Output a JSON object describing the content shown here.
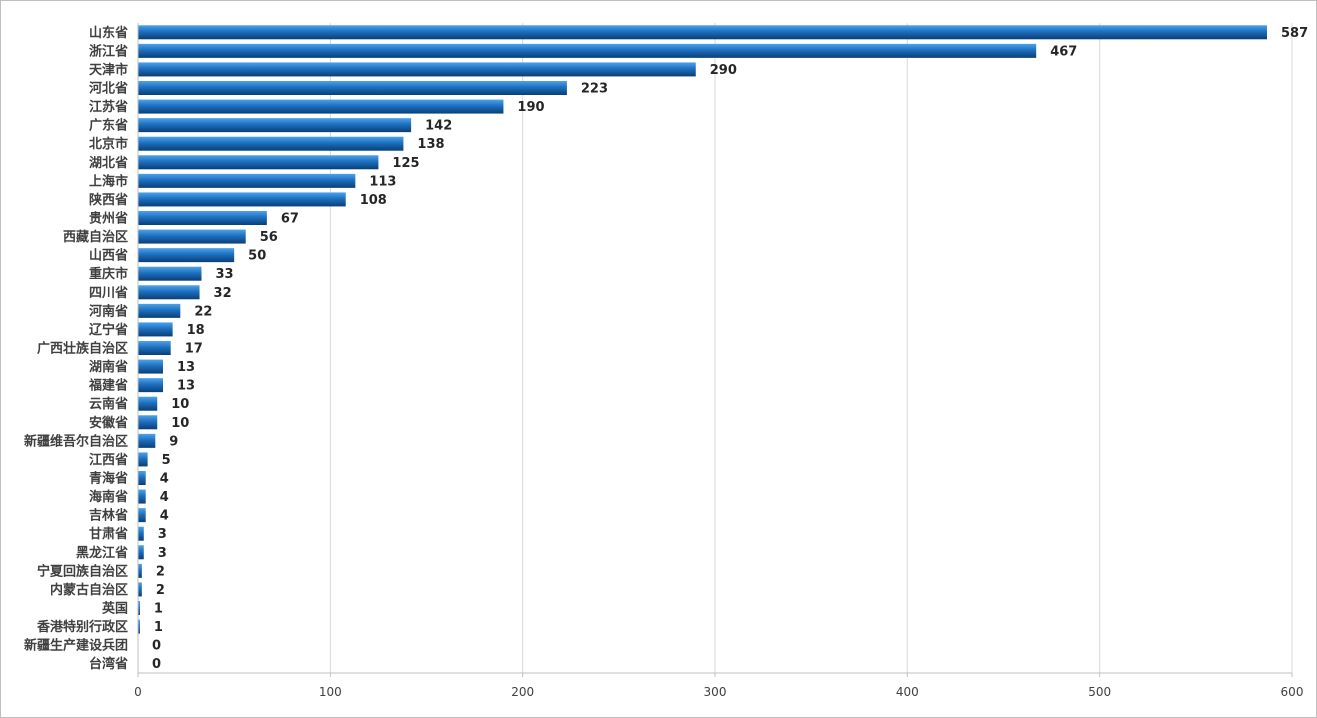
{
  "chart_data": {
    "type": "bar",
    "orientation": "horizontal",
    "categories": [
      "山东省",
      "浙江省",
      "天津市",
      "河北省",
      "江苏省",
      "广东省",
      "北京市",
      "湖北省",
      "上海市",
      "陕西省",
      "贵州省",
      "西藏自治区",
      "山西省",
      "重庆市",
      "四川省",
      "河南省",
      "辽宁省",
      "广西壮族自治区",
      "湖南省",
      "福建省",
      "云南省",
      "安徽省",
      "新疆维吾尔自治区",
      "江西省",
      "青海省",
      "海南省",
      "吉林省",
      "甘肃省",
      "黑龙江省",
      "宁夏回族自治区",
      "内蒙古自治区",
      "英国",
      "香港特别行政区",
      "新疆生产建设兵团",
      "台湾省"
    ],
    "values": [
      587,
      467,
      290,
      223,
      190,
      142,
      138,
      125,
      113,
      108,
      67,
      56,
      50,
      33,
      32,
      22,
      18,
      17,
      13,
      13,
      10,
      10,
      9,
      5,
      4,
      4,
      4,
      3,
      3,
      2,
      2,
      1,
      1,
      0,
      0
    ],
    "xlim": [
      0,
      600
    ],
    "xticks": [
      0,
      100,
      200,
      300,
      400,
      500,
      600
    ],
    "grid": "vertical",
    "legend": "none",
    "colors": {
      "bar_light": "#3a8fd8",
      "bar_dark": "#0b4e8c",
      "grid": "#d9d9d9"
    }
  }
}
